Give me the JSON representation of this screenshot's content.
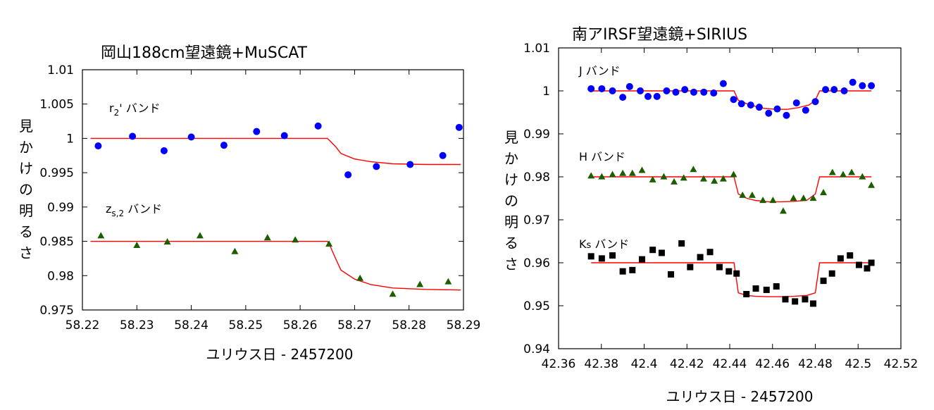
{
  "chart_data": [
    {
      "type": "scatter",
      "title": "岡山188cm望遠鏡+MuSCAT",
      "xlabel": "ユリウス日 - 2457200",
      "ylabel": "見かけの明るさ",
      "xlim": [
        58.22,
        58.29
      ],
      "ylim": [
        0.975,
        1.01
      ],
      "xticks": [
        58.22,
        58.23,
        58.24,
        58.25,
        58.26,
        58.27,
        58.28,
        58.29
      ],
      "xtick_labels": [
        "58.22",
        "58.23",
        "58.24",
        "58.25",
        "58.26",
        "58.27",
        "58.28",
        "58.29"
      ],
      "yticks": [
        0.975,
        0.98,
        0.985,
        0.99,
        0.995,
        1.0,
        1.005,
        1.01
      ],
      "ytick_labels": [
        "0.975",
        "0.98",
        "0.985",
        "0.99",
        "0.995",
        "1",
        "1.005",
        "1.01"
      ],
      "grid": false,
      "model_color": "#ff0000",
      "series": [
        {
          "name": "r₂' バンド",
          "marker": "circle",
          "color": "#0000ff",
          "x": [
            58.2229,
            58.2292,
            58.235,
            58.24,
            58.246,
            58.252,
            58.2571,
            58.2633,
            58.2688,
            58.274,
            58.2802,
            58.2862,
            58.2892
          ],
          "y": [
            0.9989,
            1.0003,
            0.9982,
            1.0002,
            0.999,
            1.001,
            1.0004,
            1.0018,
            0.9947,
            0.9959,
            0.9962,
            0.9975,
            1.0016
          ],
          "model": {
            "x": [
              58.2215,
              58.265,
              58.2655,
              58.2665,
              58.2675,
              58.27,
              58.273,
              58.277,
              58.283,
              58.2895
            ],
            "y": [
              1.0,
              1.0,
              0.9996,
              0.9988,
              0.9978,
              0.997,
              0.9966,
              0.9963,
              0.9962,
              0.9962
            ]
          }
        },
        {
          "name": "z s,2 バンド",
          "marker": "triangle",
          "color": "#1a5e00",
          "x": [
            58.2234,
            58.23,
            58.2356,
            58.2416,
            58.248,
            58.254,
            58.2591,
            58.2653,
            58.271,
            58.277,
            58.282,
            58.2872
          ],
          "y": [
            0.9858,
            0.9844,
            0.9849,
            0.9858,
            0.9835,
            0.9855,
            0.9852,
            0.9846,
            0.9796,
            0.9773,
            0.9787,
            0.9791
          ],
          "model": {
            "x": [
              58.2215,
              58.265,
              58.2655,
              58.2665,
              58.2675,
              58.27,
              58.273,
              58.277,
              58.283,
              58.2895
            ],
            "y": [
              0.985,
              0.985,
              0.9843,
              0.9825,
              0.9808,
              0.9795,
              0.9787,
              0.9782,
              0.978,
              0.9779
            ]
          }
        }
      ]
    },
    {
      "type": "scatter",
      "title": "南アIRSF望遠鏡+SIRIUS",
      "xlabel": "ユリウス日 - 2457200",
      "ylabel": "見かけの明るさ",
      "xlim": [
        42.36,
        42.52
      ],
      "ylim": [
        0.94,
        1.01
      ],
      "xticks": [
        42.36,
        42.38,
        42.4,
        42.42,
        42.44,
        42.46,
        42.48,
        42.5,
        42.52
      ],
      "xtick_labels": [
        "42.36",
        "42.38",
        "42.4",
        "42.42",
        "42.44",
        "42.46",
        "42.48",
        "42.5",
        "42.52"
      ],
      "yticks": [
        0.94,
        0.95,
        0.96,
        0.97,
        0.98,
        0.99,
        1.0,
        1.01
      ],
      "ytick_labels": [
        "0.94",
        "0.95",
        "0.96",
        "0.97",
        "0.98",
        "0.99",
        "1",
        "1.01"
      ],
      "grid": false,
      "model_color": "#ff0000",
      "series": [
        {
          "name": "J バンド",
          "marker": "circle",
          "color": "#0000ff",
          "x": [
            42.3752,
            42.3802,
            42.3852,
            42.39,
            42.3932,
            42.3982,
            42.4018,
            42.406,
            42.4105,
            42.4148,
            42.419,
            42.4232,
            42.4279,
            42.4325,
            42.437,
            42.4418,
            42.4455,
            42.4498,
            42.4538,
            42.4582,
            42.4622,
            42.4665,
            42.4712,
            42.4755,
            42.48,
            42.4848,
            42.4888,
            42.4935,
            42.4975,
            42.502,
            42.5062
          ],
          "y": [
            1.0005,
            1.0005,
            1.0,
            0.9985,
            1.001,
            1.0,
            0.9987,
            0.9987,
            1.0,
            0.9997,
            1.0003,
            0.9997,
            0.9997,
            0.9995,
            1.0017,
            0.998,
            0.997,
            0.9967,
            0.9962,
            0.9948,
            0.9958,
            0.9943,
            0.9972,
            0.9955,
            0.9975,
            1.0003,
            1.0003,
            1.0,
            1.002,
            1.0012,
            1.0012
          ],
          "model": {
            "x": [
              42.3752,
              42.442,
              42.444,
              42.448,
              42.452,
              42.4565,
              42.462,
              42.467,
              42.472,
              42.477,
              42.48,
              42.482,
              42.5062
            ],
            "y": [
              1.0,
              1.0,
              0.9978,
              0.997,
              0.9964,
              0.9959,
              0.9957,
              0.9957,
              0.9961,
              0.9967,
              0.9978,
              1.0,
              1.0
            ]
          }
        },
        {
          "name": "H バンド",
          "marker": "triangle",
          "color": "#1a5e00",
          "x": [
            42.3752,
            42.3802,
            42.3852,
            42.39,
            42.3945,
            42.399,
            42.404,
            42.4092,
            42.414,
            42.4185,
            42.423,
            42.4278,
            42.4328,
            42.437,
            42.4418,
            42.446,
            42.4505,
            42.4555,
            42.4602,
            42.465,
            42.4698,
            42.4745,
            42.479,
            42.4838,
            42.488,
            42.493,
            42.497,
            42.502,
            42.5062
          ],
          "y": [
            0.9802,
            0.98,
            0.9805,
            0.9808,
            0.9808,
            0.9815,
            0.9793,
            0.98,
            0.9788,
            0.9797,
            0.9817,
            0.9795,
            0.979,
            0.9795,
            0.9805,
            0.9757,
            0.9757,
            0.9745,
            0.9745,
            0.972,
            0.975,
            0.975,
            0.975,
            0.9763,
            0.981,
            0.9805,
            0.981,
            0.98,
            0.978
          ],
          "model": {
            "x": [
              42.3752,
              42.442,
              42.444,
              42.448,
              42.452,
              42.458,
              42.464,
              42.47,
              42.476,
              42.48,
              42.482,
              42.5062
            ],
            "y": [
              0.98,
              0.98,
              0.976,
              0.975,
              0.9745,
              0.9742,
              0.9742,
              0.9743,
              0.9745,
              0.976,
              0.98,
              0.98
            ]
          }
        },
        {
          "name": "Ks バンド",
          "marker": "square",
          "color": "#000000",
          "x": [
            42.3752,
            42.3802,
            42.3852,
            42.39,
            42.3945,
            42.399,
            42.404,
            42.4082,
            42.4125,
            42.4175,
            42.4215,
            42.4262,
            42.4308,
            42.4352,
            42.4396,
            42.4432,
            42.4478,
            42.4522,
            42.4572,
            42.4618,
            42.466,
            42.4705,
            42.4752,
            42.479,
            42.4838,
            42.4878,
            42.4918,
            42.4962,
            42.5004,
            42.5042,
            42.5062
          ],
          "y": [
            0.9615,
            0.961,
            0.9617,
            0.958,
            0.9583,
            0.9608,
            0.963,
            0.9623,
            0.9573,
            0.9645,
            0.959,
            0.9613,
            0.9625,
            0.959,
            0.958,
            0.9575,
            0.9527,
            0.954,
            0.9537,
            0.9545,
            0.9515,
            0.951,
            0.9515,
            0.9505,
            0.9558,
            0.9575,
            0.961,
            0.9617,
            0.9595,
            0.9587,
            0.96
          ],
          "model": {
            "x": [
              42.3752,
              42.442,
              42.444,
              42.448,
              42.452,
              42.458,
              42.464,
              42.47,
              42.476,
              42.48,
              42.482,
              42.5062
            ],
            "y": [
              0.96,
              0.96,
              0.953,
              0.9524,
              0.9522,
              0.9521,
              0.9521,
              0.9522,
              0.9524,
              0.953,
              0.96,
              0.96
            ]
          }
        }
      ]
    }
  ]
}
